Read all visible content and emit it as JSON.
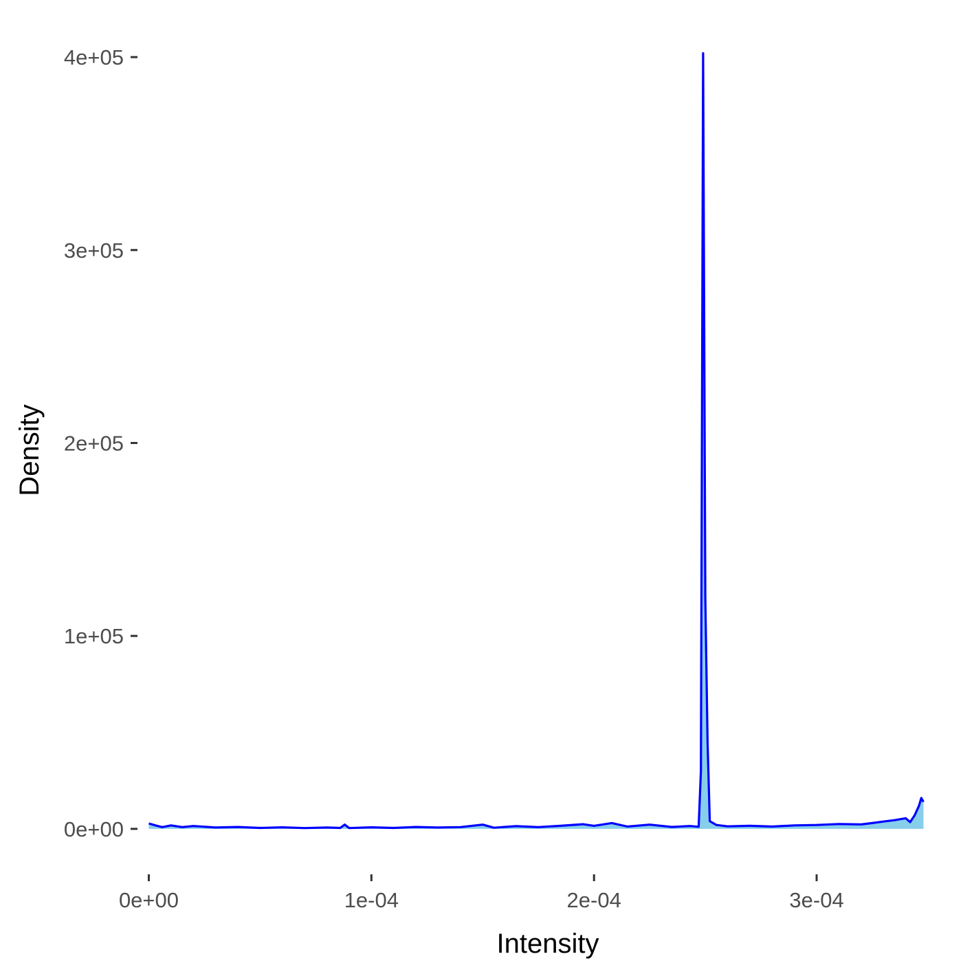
{
  "chart_data": {
    "type": "area",
    "xlabel": "Intensity",
    "ylabel": "Density",
    "xlim": [
      -2e-06,
      0.00035
    ],
    "ylim": [
      -20000,
      410000
    ],
    "x_ticks": [
      {
        "value": 0,
        "label": "0e+00"
      },
      {
        "value": 0.0001,
        "label": "1e-04"
      },
      {
        "value": 0.0002,
        "label": "2e-04"
      },
      {
        "value": 0.0003,
        "label": "3e-04"
      }
    ],
    "y_ticks": [
      {
        "value": 0,
        "label": "0e+00"
      },
      {
        "value": 100000,
        "label": "1e+05"
      },
      {
        "value": 200000,
        "label": "2e+05"
      },
      {
        "value": 300000,
        "label": "3e+05"
      },
      {
        "value": 400000,
        "label": "4e+05"
      }
    ],
    "grid": false,
    "series": [
      {
        "line_color": "#0000ff",
        "fill_color": "#87ceeb",
        "points": [
          [
            0.0,
            2800
          ],
          [
            3e-06,
            1800
          ],
          [
            6e-06,
            900
          ],
          [
            1e-05,
            1800
          ],
          [
            1.5e-05,
            900
          ],
          [
            2e-05,
            1500
          ],
          [
            3e-05,
            700
          ],
          [
            4e-05,
            1000
          ],
          [
            5e-05,
            500
          ],
          [
            6e-05,
            800
          ],
          [
            7e-05,
            400
          ],
          [
            8e-05,
            700
          ],
          [
            8.6e-05,
            500
          ],
          [
            8.8e-05,
            2200
          ],
          [
            9e-05,
            400
          ],
          [
            0.0001,
            800
          ],
          [
            0.00011,
            500
          ],
          [
            0.00012,
            1000
          ],
          [
            0.00013,
            700
          ],
          [
            0.00014,
            900
          ],
          [
            0.00015,
            2200
          ],
          [
            0.000155,
            600
          ],
          [
            0.000165,
            1400
          ],
          [
            0.000175,
            900
          ],
          [
            0.000185,
            1600
          ],
          [
            0.000195,
            2400
          ],
          [
            0.0002,
            1600
          ],
          [
            0.000208,
            3000
          ],
          [
            0.000215,
            1200
          ],
          [
            0.000225,
            2200
          ],
          [
            0.000235,
            1000
          ],
          [
            0.000243,
            1500
          ],
          [
            0.000247,
            1100
          ],
          [
            0.000248,
            30000
          ],
          [
            0.000249,
            402000
          ],
          [
            0.00025,
            120000
          ],
          [
            0.000251,
            45000
          ],
          [
            0.000252,
            4000
          ],
          [
            0.000255,
            2000
          ],
          [
            0.00026,
            1300
          ],
          [
            0.00027,
            1600
          ],
          [
            0.00028,
            1200
          ],
          [
            0.00029,
            1800
          ],
          [
            0.0003,
            2000
          ],
          [
            0.00031,
            2500
          ],
          [
            0.00032,
            2300
          ],
          [
            0.000325,
            3000
          ],
          [
            0.00033,
            3800
          ],
          [
            0.000335,
            4500
          ],
          [
            0.00034,
            5500
          ],
          [
            0.000342,
            3500
          ],
          [
            0.000344,
            7000
          ],
          [
            0.000346,
            12000
          ],
          [
            0.000347,
            16000
          ],
          [
            0.000348,
            14000
          ]
        ]
      }
    ]
  }
}
